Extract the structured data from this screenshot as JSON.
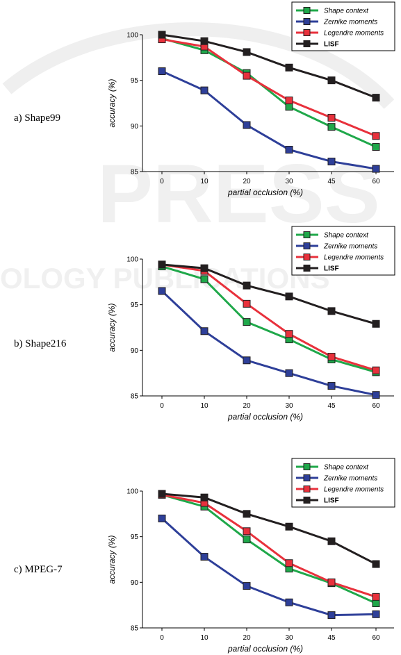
{
  "watermark": [
    "PRESS",
    "OLOGY PUBLICATIONS"
  ],
  "panels": [
    {
      "label": "a) Shape99"
    },
    {
      "label": "b) Shape216"
    },
    {
      "label": "c) MPEG-7"
    }
  ],
  "colors": {
    "Shape context": "#1fa84a",
    "Zernike moments": "#2e3f99",
    "Legendre moments": "#e8313c",
    "LISF": "#231f20"
  },
  "chart_data": [
    {
      "type": "line",
      "categories": [
        "0",
        "10",
        "20",
        "30",
        "45",
        "60"
      ],
      "xlabel": "partial occlusion (%)",
      "ylabel": "accuracy (%)",
      "ylim": [
        85,
        100
      ],
      "yticks": [
        85,
        90,
        95,
        100
      ],
      "legend": "top-right",
      "grid": false,
      "series": [
        {
          "name": "Shape context",
          "values": [
            99.6,
            98.3,
            95.8,
            92.1,
            89.9,
            87.7
          ]
        },
        {
          "name": "Zernike moments",
          "values": [
            96.0,
            93.9,
            90.1,
            87.4,
            86.1,
            85.3
          ]
        },
        {
          "name": "Legendre moments",
          "values": [
            99.5,
            98.7,
            95.5,
            92.8,
            90.9,
            88.9
          ]
        },
        {
          "name": "LISF",
          "values": [
            100.0,
            99.3,
            98.1,
            96.4,
            95.0,
            93.1
          ]
        }
      ]
    },
    {
      "type": "line",
      "categories": [
        "0",
        "10",
        "20",
        "30",
        "45",
        "60"
      ],
      "xlabel": "partial occlusion (%)",
      "ylabel": "accuracy (%)",
      "ylim": [
        85,
        100
      ],
      "yticks": [
        85,
        90,
        95,
        100
      ],
      "legend": "top-right",
      "grid": false,
      "series": [
        {
          "name": "Shape context",
          "values": [
            99.2,
            97.8,
            93.1,
            91.2,
            89.0,
            87.6
          ]
        },
        {
          "name": "Zernike moments",
          "values": [
            96.5,
            92.1,
            88.9,
            87.5,
            86.1,
            85.1
          ]
        },
        {
          "name": "Legendre moments",
          "values": [
            99.4,
            98.7,
            95.1,
            91.8,
            89.3,
            87.8
          ]
        },
        {
          "name": "LISF",
          "values": [
            99.4,
            99.0,
            97.1,
            95.9,
            94.3,
            92.9
          ]
        }
      ]
    },
    {
      "type": "line",
      "categories": [
        "0",
        "10",
        "20",
        "30",
        "45",
        "60"
      ],
      "xlabel": "partial occlusion (%)",
      "ylabel": "accuracy (%)",
      "ylim": [
        85,
        100
      ],
      "yticks": [
        85,
        90,
        95,
        100
      ],
      "legend": "top-right",
      "grid": false,
      "series": [
        {
          "name": "Shape context",
          "values": [
            99.6,
            98.3,
            94.7,
            91.5,
            89.9,
            87.7
          ]
        },
        {
          "name": "Zernike moments",
          "values": [
            97.0,
            92.8,
            89.6,
            87.8,
            86.4,
            86.5
          ]
        },
        {
          "name": "Legendre moments",
          "values": [
            99.6,
            98.7,
            95.6,
            92.1,
            90.0,
            88.4
          ]
        },
        {
          "name": "LISF",
          "values": [
            99.7,
            99.3,
            97.5,
            96.1,
            94.5,
            92.0
          ]
        }
      ]
    }
  ]
}
